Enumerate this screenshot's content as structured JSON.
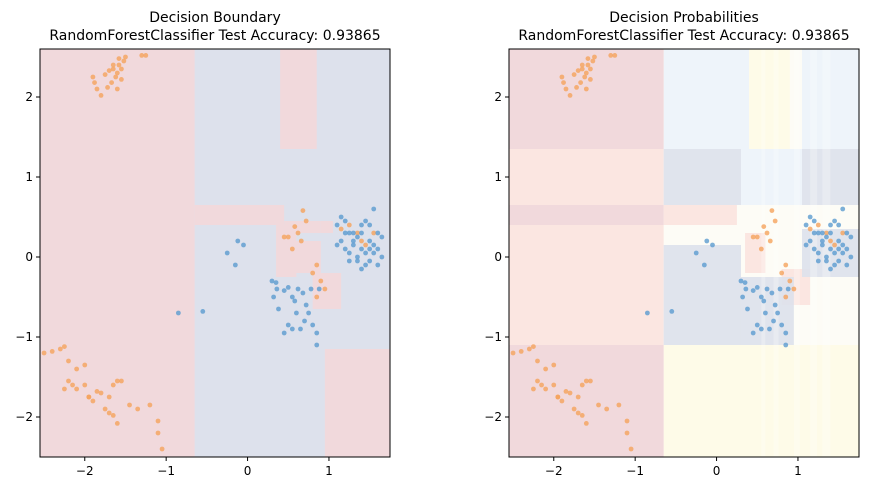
{
  "colors": {
    "red_region": "#f1d9dc",
    "blue_region": "#dde1ec",
    "orange_points": "#f5a25d",
    "blue_points": "#5b9bd0",
    "prob_pale_blue": "#eef4fa",
    "prob_pale_yellow": "#fefbe8",
    "prob_pale_peach": "#fbe6e1"
  },
  "chart_data": [
    {
      "type": "scatter",
      "title": "Decision Boundary",
      "subtitle": "RandomForestClassifier Test Accuracy: 0.93865",
      "xlim": [
        -2.55,
        1.75
      ],
      "ylim": [
        -2.5,
        2.6
      ],
      "xticks": [
        -2,
        -1,
        0,
        1
      ],
      "yticks": [
        -2,
        -1,
        0,
        1,
        2
      ],
      "xticklabels": [
        "−2",
        "−1",
        "0",
        "1"
      ],
      "yticklabels": [
        "−2",
        "−1",
        "0",
        "1",
        "2"
      ],
      "grid": false,
      "background": "predicted class regions (red = class 1, blue = class 0)"
    },
    {
      "type": "scatter",
      "title": "Decision Probabilities",
      "subtitle": "RandomForestClassifier Test Accuracy: 0.93865",
      "xlim": [
        -2.55,
        1.75
      ],
      "ylim": [
        -2.5,
        2.6
      ],
      "xticks": [
        -2,
        -1,
        0,
        1
      ],
      "yticks": [
        -2,
        -1,
        0,
        1,
        2
      ],
      "xticklabels": [
        "−2",
        "−1",
        "0",
        "1"
      ],
      "yticklabels": [
        "−2",
        "−1",
        "0",
        "1",
        "2"
      ],
      "grid": false,
      "background": "predicted class probability shading"
    }
  ],
  "points": {
    "orange": [
      [
        -1.75,
        2.28
      ],
      [
        -1.7,
        2.33
      ],
      [
        -1.65,
        2.4
      ],
      [
        -1.6,
        2.3
      ],
      [
        -1.55,
        2.35
      ],
      [
        -1.58,
        2.48
      ],
      [
        -1.5,
        2.5
      ],
      [
        -1.52,
        2.45
      ],
      [
        -1.62,
        2.25
      ],
      [
        -1.67,
        2.18
      ],
      [
        -1.72,
        2.12
      ],
      [
        -1.8,
        2.02
      ],
      [
        -1.85,
        2.1
      ],
      [
        -1.9,
        2.25
      ],
      [
        -1.88,
        2.18
      ],
      [
        -1.6,
        2.1
      ],
      [
        -1.55,
        2.22
      ],
      [
        -1.65,
        2.35
      ],
      [
        -1.58,
        2.4
      ],
      [
        -1.3,
        2.52
      ],
      [
        -1.25,
        2.52
      ],
      [
        -2.5,
        -1.2
      ],
      [
        -2.4,
        -1.18
      ],
      [
        -2.3,
        -1.15
      ],
      [
        -2.25,
        -1.12
      ],
      [
        -2.2,
        -1.3
      ],
      [
        -2.1,
        -1.4
      ],
      [
        -2.0,
        -1.35
      ],
      [
        -2.2,
        -1.55
      ],
      [
        -2.25,
        -1.65
      ],
      [
        -2.15,
        -1.6
      ],
      [
        -2.0,
        -1.6
      ],
      [
        -1.95,
        -1.75
      ],
      [
        -1.9,
        -1.8
      ],
      [
        -1.8,
        -1.7
      ],
      [
        -1.75,
        -1.9
      ],
      [
        -1.7,
        -1.75
      ],
      [
        -1.65,
        -1.6
      ],
      [
        -1.55,
        -1.55
      ],
      [
        -1.6,
        -1.55
      ],
      [
        -1.7,
        -1.95
      ],
      [
        -1.65,
        -1.98
      ],
      [
        -1.6,
        -2.08
      ],
      [
        -1.45,
        -1.85
      ],
      [
        -1.35,
        -1.9
      ],
      [
        -1.2,
        -1.85
      ],
      [
        -1.1,
        -2.05
      ],
      [
        -1.1,
        -2.2
      ],
      [
        -1.05,
        -2.4
      ],
      [
        -2.1,
        -1.65
      ],
      [
        -1.85,
        -1.68
      ],
      [
        -1.95,
        -1.75
      ],
      [
        0.68,
        0.58
      ],
      [
        0.72,
        0.45
      ],
      [
        0.58,
        0.38
      ],
      [
        0.55,
        0.1
      ],
      [
        0.5,
        0.25
      ],
      [
        0.45,
        0.25
      ],
      [
        0.62,
        0.3
      ],
      [
        0.66,
        0.2
      ],
      [
        0.85,
        -0.1
      ],
      [
        0.9,
        -0.3
      ],
      [
        0.95,
        -0.4
      ],
      [
        0.85,
        -0.5
      ],
      [
        0.8,
        -0.2
      ],
      [
        1.15,
        0.35
      ],
      [
        1.25,
        0.4
      ],
      [
        1.35,
        0.3
      ],
      [
        1.4,
        0.2
      ],
      [
        1.45,
        0.15
      ],
      [
        1.55,
        0.3
      ]
    ],
    "blue": [
      [
        -0.85,
        -0.7
      ],
      [
        -0.55,
        -0.68
      ],
      [
        -0.25,
        0.05
      ],
      [
        -0.15,
        -0.1
      ],
      [
        -0.12,
        0.2
      ],
      [
        -0.05,
        0.15
      ],
      [
        0.3,
        -0.3
      ],
      [
        0.35,
        -0.32
      ],
      [
        0.32,
        -0.5
      ],
      [
        0.38,
        -0.65
      ],
      [
        0.45,
        -0.42
      ],
      [
        0.5,
        -0.38
      ],
      [
        0.55,
        -0.5
      ],
      [
        0.58,
        -0.55
      ],
      [
        0.62,
        -0.4
      ],
      [
        0.68,
        -0.45
      ],
      [
        0.72,
        -0.6
      ],
      [
        0.75,
        -0.7
      ],
      [
        0.7,
        -0.8
      ],
      [
        0.8,
        -0.85
      ],
      [
        0.85,
        -0.95
      ],
      [
        0.85,
        -1.1
      ],
      [
        0.5,
        -0.85
      ],
      [
        0.55,
        -0.9
      ],
      [
        0.65,
        -0.9
      ],
      [
        0.45,
        -0.95
      ],
      [
        0.78,
        -0.4
      ],
      [
        0.88,
        -0.4
      ],
      [
        0.6,
        -0.7
      ],
      [
        0.36,
        -0.4
      ],
      [
        1.1,
        0.15
      ],
      [
        1.15,
        0.2
      ],
      [
        1.2,
        0.1
      ],
      [
        1.25,
        0.05
      ],
      [
        1.3,
        0.15
      ],
      [
        1.35,
        0.0
      ],
      [
        1.4,
        0.1
      ],
      [
        1.45,
        0.05
      ],
      [
        1.5,
        0.2
      ],
      [
        1.55,
        0.15
      ],
      [
        1.6,
        0.1
      ],
      [
        1.65,
        0.25
      ],
      [
        1.6,
        -0.1
      ],
      [
        1.55,
        0.05
      ],
      [
        1.5,
        -0.05
      ],
      [
        1.45,
        -0.1
      ],
      [
        1.4,
        0.3
      ],
      [
        1.35,
        0.25
      ],
      [
        1.3,
        0.3
      ],
      [
        1.25,
        0.3
      ],
      [
        1.2,
        0.45
      ],
      [
        1.15,
        0.5
      ],
      [
        1.1,
        0.4
      ],
      [
        1.2,
        0.3
      ],
      [
        1.3,
        0.2
      ],
      [
        1.4,
        0.4
      ],
      [
        1.5,
        0.4
      ],
      [
        1.55,
        0.6
      ],
      [
        1.45,
        0.45
      ],
      [
        1.35,
        -0.05
      ],
      [
        1.25,
        -0.05
      ],
      [
        1.4,
        -0.15
      ],
      [
        1.5,
        0.1
      ],
      [
        1.6,
        0.3
      ],
      [
        1.65,
        0.0
      ]
    ]
  },
  "regions_boundary": {
    "red": [
      [
        -2.55,
        2.6,
        -0.65,
        -2.5
      ],
      [
        -0.65,
        0.65,
        0.45,
        0.4
      ],
      [
        0.45,
        0.45,
        0.9,
        0.3
      ],
      [
        0.9,
        0.45,
        1.05,
        0.3
      ],
      [
        0.35,
        0.4,
        0.6,
        -0.25
      ],
      [
        0.55,
        0.2,
        0.9,
        -0.2
      ],
      [
        0.8,
        -0.2,
        1.15,
        -0.65
      ],
      [
        0.95,
        -1.15,
        1.75,
        -2.5
      ],
      [
        0.4,
        2.6,
        0.85,
        1.35
      ]
    ]
  },
  "regions_prob": {
    "red_strong": [
      [
        -2.55,
        2.6,
        -0.65,
        1.35
      ],
      [
        -2.55,
        -1.1,
        -0.65,
        -2.5
      ],
      [
        -2.55,
        0.65,
        -0.65,
        0.4
      ]
    ],
    "red_light": [
      [
        -2.55,
        1.35,
        -0.65,
        0.65
      ],
      [
        -2.55,
        0.4,
        -0.65,
        -1.1
      ],
      [
        -0.65,
        0.65,
        0.25,
        0.4
      ],
      [
        0.35,
        0.3,
        0.6,
        -0.2
      ],
      [
        0.8,
        -0.15,
        1.15,
        -0.6
      ]
    ],
    "blue_med": [
      [
        -0.65,
        1.35,
        0.3,
        0.65
      ],
      [
        1.05,
        1.35,
        1.75,
        0.65
      ],
      [
        -0.65,
        0.15,
        0.3,
        -1.1
      ],
      [
        0.3,
        -0.25,
        0.95,
        -1.1
      ],
      [
        1.05,
        0.35,
        1.75,
        -0.25
      ]
    ],
    "blue_pale": [
      [
        -0.65,
        2.6,
        0.4,
        1.35
      ],
      [
        1.05,
        2.6,
        1.75,
        1.35
      ],
      [
        0.3,
        1.35,
        1.05,
        0.65
      ]
    ],
    "yellow_pale": [
      [
        0.4,
        2.6,
        0.9,
        1.35
      ],
      [
        -0.65,
        -1.1,
        1.75,
        -2.5
      ]
    ]
  }
}
